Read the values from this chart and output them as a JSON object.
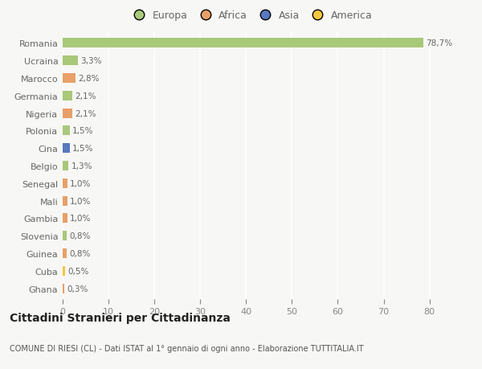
{
  "categories": [
    "Ghana",
    "Cuba",
    "Guinea",
    "Slovenia",
    "Gambia",
    "Mali",
    "Senegal",
    "Belgio",
    "Cina",
    "Polonia",
    "Nigeria",
    "Germania",
    "Marocco",
    "Ucraina",
    "Romania"
  ],
  "values": [
    0.3,
    0.5,
    0.8,
    0.8,
    1.0,
    1.0,
    1.0,
    1.3,
    1.5,
    1.5,
    2.1,
    2.1,
    2.8,
    3.3,
    78.7
  ],
  "labels": [
    "0,3%",
    "0,5%",
    "0,8%",
    "0,8%",
    "1,0%",
    "1,0%",
    "1,0%",
    "1,3%",
    "1,5%",
    "1,5%",
    "2,1%",
    "2,1%",
    "2,8%",
    "3,3%",
    "78,7%"
  ],
  "colors": [
    "#e8a068",
    "#f5c842",
    "#e8a068",
    "#a8c87a",
    "#e8a068",
    "#e8a068",
    "#e8a068",
    "#a8c87a",
    "#5878c0",
    "#a8c87a",
    "#e8a068",
    "#a8c87a",
    "#e8a068",
    "#a8c87a",
    "#a8c87a"
  ],
  "legend_labels": [
    "Europa",
    "Africa",
    "Asia",
    "America"
  ],
  "legend_colors": [
    "#a8c87a",
    "#e8a068",
    "#5878c0",
    "#f5c842"
  ],
  "title": "Cittadini Stranieri per Cittadinanza",
  "subtitle": "COMUNE DI RIESI (CL) - Dati ISTAT al 1° gennaio di ogni anno - Elaborazione TUTTITALIA.IT",
  "xlim_max": 82,
  "background_color": "#f7f7f5",
  "grid_color": "#ffffff",
  "bar_height": 0.55
}
